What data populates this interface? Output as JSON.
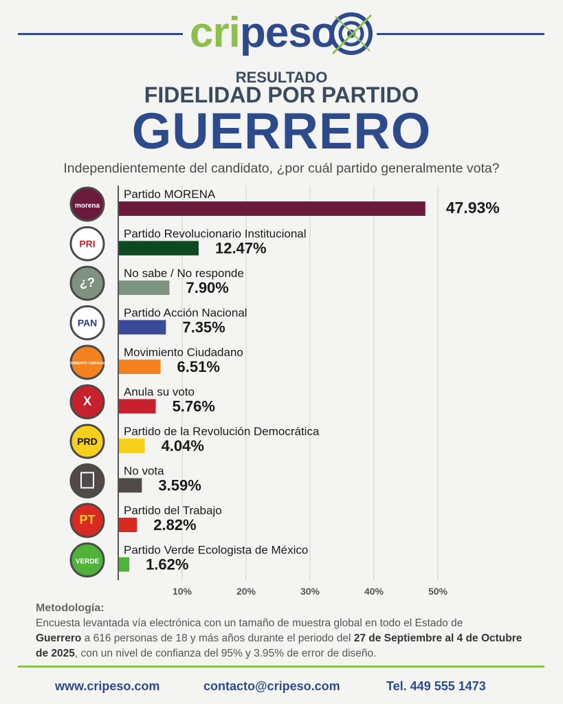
{
  "brand": {
    "logo_green": "cri",
    "logo_blue": "peso",
    "green": "#8cc04a",
    "blue": "#2d4a8a"
  },
  "header": {
    "line1": "RESULTADO",
    "line2": "FIDELIDAD POR PARTIDO",
    "line3": "GUERRERO",
    "question": "Independientemente del candidato, ¿por cuál partido generalmente vota?"
  },
  "chart_data": {
    "type": "bar",
    "orientation": "horizontal",
    "xlim": [
      0,
      50
    ],
    "xticks": [
      "10%",
      "20%",
      "30%",
      "40%",
      "50%"
    ],
    "grid": true,
    "categories": [
      "Partido MORENA",
      "Partido Revolucionario Institucional",
      "No sabe / No responde",
      "Partido Acción Nacional",
      "Movimiento Ciudadano",
      "Anula su voto",
      "Partido de la Revolución Democrática",
      "No vota",
      "Partido del Trabajo",
      "Partido Verde Ecologista de México"
    ],
    "values": [
      47.93,
      12.47,
      7.9,
      7.35,
      6.51,
      5.76,
      4.04,
      3.59,
      2.82,
      1.62
    ],
    "value_labels": [
      "47.93%",
      "12.47%",
      "7.90%",
      "7.35%",
      "6.51%",
      "5.76%",
      "4.04%",
      "3.59%",
      "2.82%",
      "1.62%"
    ],
    "colors": [
      "#6b1a3b",
      "#0d4a22",
      "#7f9282",
      "#3b4b9c",
      "#f5821f",
      "#c8202c",
      "#f6d01b",
      "#4f4a49",
      "#d92a22",
      "#4fb33a"
    ],
    "icons": [
      {
        "name": "morena-logo-icon",
        "text": "morena",
        "bg": "#6b1a3b",
        "fg": "#ffffff"
      },
      {
        "name": "pri-logo-icon",
        "text": "PRI",
        "bg": "#ffffff",
        "fg": "#c8202c"
      },
      {
        "name": "question-icon",
        "text": "¿?",
        "bg": "#7f9282",
        "fg": "#ffffff"
      },
      {
        "name": "pan-logo-icon",
        "text": "PAN",
        "bg": "#ffffff",
        "fg": "#2d3b8c"
      },
      {
        "name": "movimiento-ciudadano-logo-icon",
        "text": "MOVIMIENTO CIUDADANO",
        "bg": "#f5821f",
        "fg": "#ffffff"
      },
      {
        "name": "annul-vote-icon",
        "text": "X",
        "bg": "#c8202c",
        "fg": "#ffffff"
      },
      {
        "name": "prd-logo-icon",
        "text": "PRD",
        "bg": "#f6d01b",
        "fg": "#111111"
      },
      {
        "name": "ballot-box-icon",
        "text": "",
        "bg": "#4f4a49",
        "fg": "#ffffff"
      },
      {
        "name": "pt-logo-icon",
        "text": "PT",
        "bg": "#d92a22",
        "fg": "#f6d01b"
      },
      {
        "name": "verde-logo-icon",
        "text": "VERDE",
        "bg": "#4fb33a",
        "fg": "#ffffff"
      }
    ]
  },
  "methodology": {
    "heading": "Metodología:",
    "p1": "Encuesta levantada vía electrónica con un tamaño de muestra global en todo el Estado de",
    "b1": "Guerrero",
    "p2": " a 616 personas de 18 y más años durante el periodo del ",
    "b2": "27 de Septiembre al 4 de Octubre de 2025",
    "p3": ", con un nivel de confianza del 95% y 3.95% de error de diseño."
  },
  "footer": {
    "web": "www.cripeso.com",
    "email": "contacto@cripeso.com",
    "phone": "Tel. 449 555 1473"
  }
}
